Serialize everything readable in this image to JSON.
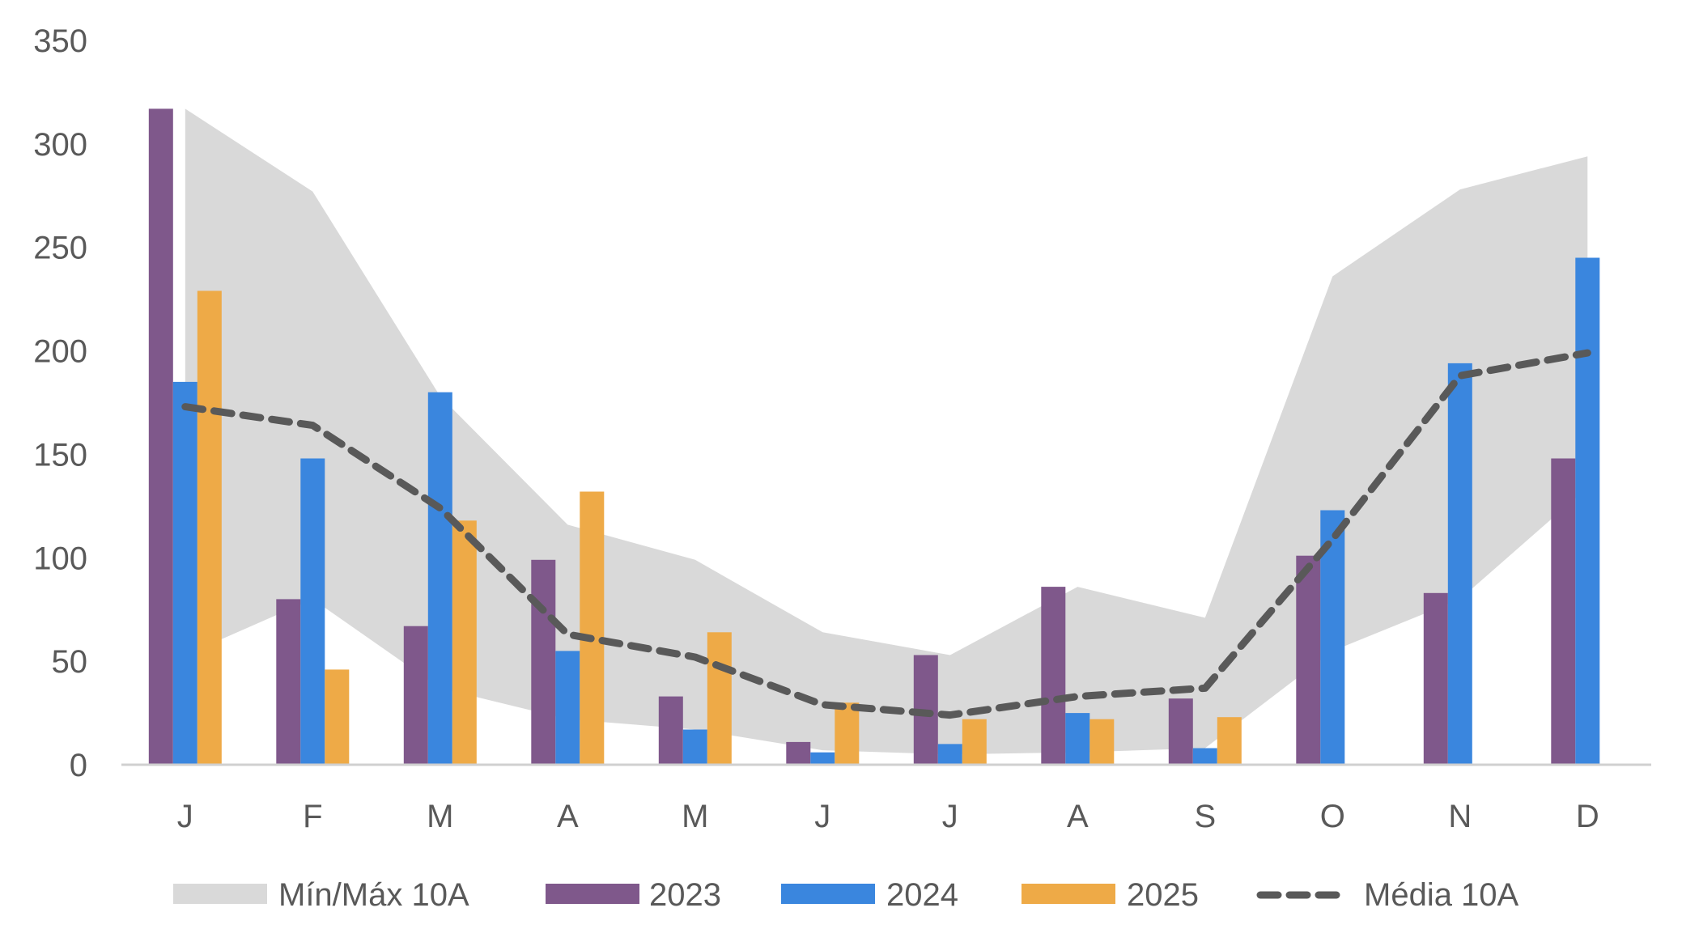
{
  "chart_data": {
    "type": "bar",
    "categories": [
      "J",
      "F",
      "M",
      "A",
      "M",
      "J",
      "J",
      "A",
      "S",
      "O",
      "N",
      "D"
    ],
    "ylim": [
      0,
      350
    ],
    "yticks": [
      0,
      50,
      100,
      150,
      200,
      250,
      300,
      350
    ],
    "grid": false,
    "legend_position": "bottom",
    "band": {
      "name": "Mín/Máx 10A",
      "color": "#d9d9d9",
      "max": [
        317,
        277,
        178,
        116,
        99,
        64,
        53,
        86,
        71,
        236,
        278,
        294
      ],
      "min": [
        53,
        80,
        37,
        22,
        17,
        7,
        5,
        6,
        8,
        55,
        80,
        134
      ]
    },
    "series": [
      {
        "name": "2023",
        "color": "#7f588b",
        "values": [
          317,
          80,
          67,
          99,
          33,
          11,
          53,
          86,
          32,
          101,
          83,
          148
        ]
      },
      {
        "name": "2024",
        "color": "#3a86de",
        "values": [
          185,
          148,
          180,
          55,
          17,
          6,
          10,
          25,
          8,
          123,
          194,
          245
        ]
      },
      {
        "name": "2025",
        "color": "#eeaa47",
        "values": [
          229,
          46,
          118,
          132,
          64,
          30,
          22,
          22,
          23,
          null,
          null,
          null
        ]
      }
    ],
    "line": {
      "name": "Média 10A",
      "color": "#595959",
      "values": [
        173,
        164,
        124,
        63,
        52,
        29,
        24,
        33,
        37,
        109,
        188,
        199
      ]
    }
  }
}
